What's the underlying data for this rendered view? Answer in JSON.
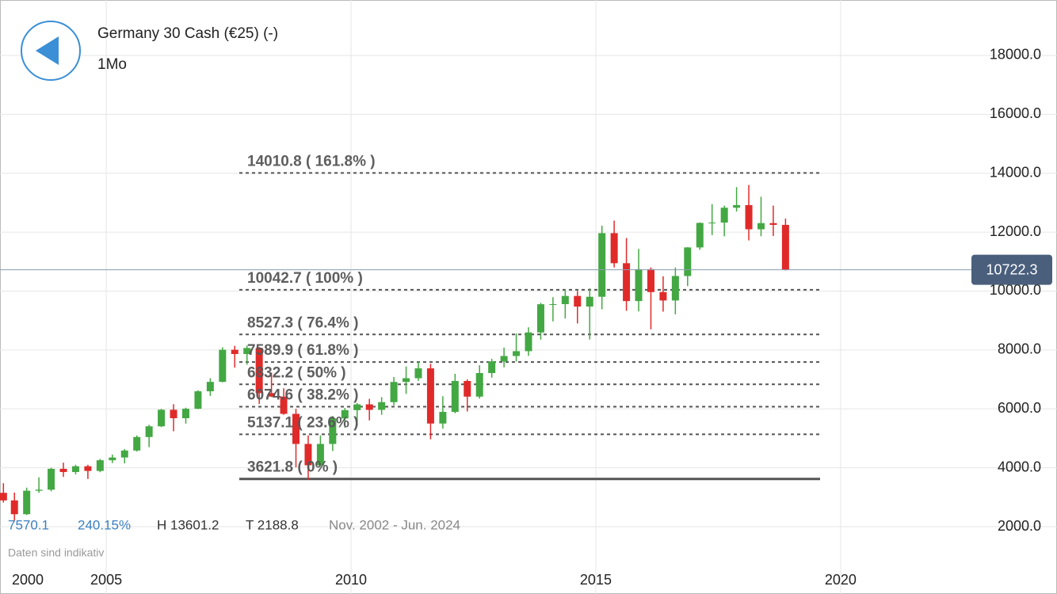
{
  "chart_data": {
    "type": "candlestick",
    "title": "Germany 30 Cash (€25) (-)",
    "subtitle": "1Mo",
    "note": "Daten sind indikativ",
    "stats": {
      "change": "7570.1",
      "change_pct": "240.15%",
      "high": "H 13601.2",
      "low": "T 2188.8",
      "range": "Nov. 2002 - Jun. 2024"
    },
    "last": 10722.3,
    "xlim": [
      2002.83,
      2024.42
    ],
    "ylim": [
      -285,
      19881
    ],
    "xticks": [
      2000,
      2005,
      2010,
      2015,
      2020
    ],
    "yticks": [
      {
        "value": 2000,
        "label": "2000.0"
      },
      {
        "value": 4000,
        "label": "4000.0"
      },
      {
        "value": 6000,
        "label": "6000.0"
      },
      {
        "value": 8000,
        "label": "8000.0"
      },
      {
        "value": 10000,
        "label": "10000.0"
      },
      {
        "value": 12000,
        "label": "12000.0"
      },
      {
        "value": 14000,
        "label": "14000.0"
      },
      {
        "value": 16000,
        "label": "16000.0"
      },
      {
        "value": 18000,
        "label": "18000.0"
      }
    ],
    "grid": true,
    "up_color": "#43a843",
    "down_color": "#e02a2a",
    "fib_levels": [
      {
        "value": 14010.8,
        "label": "14010.8 ( 161.8% )"
      },
      {
        "value": 10042.7,
        "label": "10042.7 ( 100% )"
      },
      {
        "value": 8527.3,
        "label": "8527.3 ( 76.4% )"
      },
      {
        "value": 7589.9,
        "label": "7589.9 ( 61.8% )"
      },
      {
        "value": 6832.2,
        "label": "6832.2 ( 50% )"
      },
      {
        "value": 6074.6,
        "label": "6074.6 ( 38.2% )"
      },
      {
        "value": 5137.1,
        "label": "5137.1 ( 23.6% )"
      },
      {
        "value": 3621.8,
        "label": "3621.8 ( 0% )"
      }
    ],
    "x": [
      2002.9,
      2003.125,
      2003.375,
      2003.625,
      2003.875,
      2004.125,
      2004.375,
      2004.625,
      2004.875,
      2005.125,
      2005.375,
      2005.625,
      2005.875,
      2006.125,
      2006.375,
      2006.625,
      2006.875,
      2007.125,
      2007.375,
      2007.625,
      2007.875,
      2008.125,
      2008.375,
      2008.625,
      2008.875,
      2009.125,
      2009.375,
      2009.625,
      2009.875,
      2010.125,
      2010.375,
      2010.625,
      2010.875,
      2011.125,
      2011.375,
      2011.625,
      2011.875,
      2012.125,
      2012.375,
      2012.625,
      2012.875,
      2013.125,
      2013.375,
      2013.625,
      2013.875,
      2014.125,
      2014.375,
      2014.625,
      2014.875,
      2015.125,
      2015.375,
      2015.625,
      2015.875,
      2016.125,
      2016.375,
      2016.625,
      2016.875,
      2017.125,
      2017.375,
      2017.625,
      2017.875,
      2018.125,
      2018.375,
      2018.625,
      2018.875
    ],
    "ohlc": [
      [
        3150,
        3476,
        2819,
        2893
      ],
      [
        2893,
        3158,
        2203,
        2424
      ],
      [
        2424,
        3325,
        2398,
        3221
      ],
      [
        3221,
        3676,
        3150,
        3257
      ],
      [
        3257,
        4000,
        3200,
        3965
      ],
      [
        3965,
        4176,
        3692,
        3857
      ],
      [
        3857,
        4100,
        3780,
        4052
      ],
      [
        4052,
        4100,
        3619,
        3893
      ],
      [
        3893,
        4300,
        3850,
        4256
      ],
      [
        4256,
        4450,
        4160,
        4349
      ],
      [
        4349,
        4640,
        4150,
        4586
      ],
      [
        4586,
        5100,
        4550,
        5044
      ],
      [
        5044,
        5460,
        4700,
        5408
      ],
      [
        5408,
        6000,
        5380,
        5970
      ],
      [
        5970,
        6160,
        5240,
        5683
      ],
      [
        5683,
        6040,
        5500,
        6004
      ],
      [
        6004,
        6630,
        5990,
        6597
      ],
      [
        6597,
        7040,
        6440,
        6917
      ],
      [
        6917,
        8090,
        6900,
        8007
      ],
      [
        8007,
        8140,
        7400,
        7862
      ],
      [
        7862,
        8151,
        7500,
        8067
      ],
      [
        8067,
        8100,
        6167,
        6535
      ],
      [
        6535,
        7230,
        6400,
        6418
      ],
      [
        6418,
        6700,
        5800,
        5831
      ],
      [
        5831,
        6000,
        4014,
        4810
      ],
      [
        4810,
        5100,
        3589,
        4085
      ],
      [
        4085,
        5100,
        4050,
        4809
      ],
      [
        4809,
        5760,
        4570,
        5675
      ],
      [
        5675,
        6030,
        5360,
        5957
      ],
      [
        5957,
        6200,
        5430,
        6154
      ],
      [
        6154,
        6340,
        5610,
        5966
      ],
      [
        5966,
        6400,
        5800,
        6229
      ],
      [
        6229,
        7080,
        6120,
        6914
      ],
      [
        6914,
        7440,
        6510,
        7041
      ],
      [
        7041,
        7600,
        6950,
        7376
      ],
      [
        7376,
        7530,
        4966,
        5502
      ],
      [
        5502,
        6430,
        5330,
        5898
      ],
      [
        5898,
        7190,
        5850,
        6947
      ],
      [
        6947,
        7000,
        5910,
        6416
      ],
      [
        6416,
        7480,
        6350,
        7216
      ],
      [
        7216,
        7700,
        7060,
        7612
      ],
      [
        7612,
        8080,
        7410,
        7795
      ],
      [
        7795,
        8560,
        7610,
        7959
      ],
      [
        7959,
        8770,
        7800,
        8594
      ],
      [
        8594,
        9600,
        8350,
        9552
      ],
      [
        9552,
        9790,
        8970,
        9556
      ],
      [
        9556,
        10050,
        9070,
        9833
      ],
      [
        9833,
        10000,
        8900,
        9474
      ],
      [
        9474,
        10090,
        8355,
        9806
      ],
      [
        9806,
        12220,
        9380,
        11966
      ],
      [
        11966,
        12391,
        10800,
        10945
      ],
      [
        10945,
        11800,
        9330,
        9660
      ],
      [
        9660,
        11430,
        9310,
        10743
      ],
      [
        10743,
        10800,
        8700,
        9965
      ],
      [
        9965,
        10500,
        9300,
        9680
      ],
      [
        9680,
        10800,
        9210,
        10511
      ],
      [
        10511,
        11490,
        10170,
        11481
      ],
      [
        11481,
        12330,
        11400,
        12313
      ],
      [
        12313,
        12950,
        11900,
        12325
      ],
      [
        12325,
        12900,
        11860,
        12829
      ],
      [
        12829,
        13530,
        12700,
        12918
      ],
      [
        12918,
        13601,
        11720,
        12097
      ],
      [
        12097,
        13200,
        11860,
        12306
      ],
      [
        12306,
        12900,
        11870,
        12247
      ],
      [
        12247,
        12460,
        10700,
        10722.3
      ]
    ]
  }
}
